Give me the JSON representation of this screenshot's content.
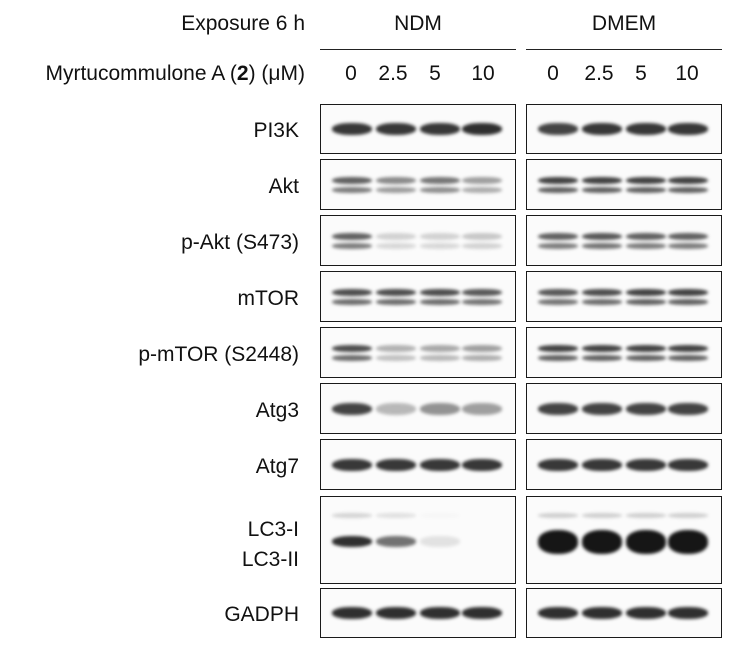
{
  "header": {
    "exposure_label": "Exposure 6 h",
    "condition_1": "NDM",
    "condition_2": "DMEM",
    "compound_prefix": "Myrtucommulone A (",
    "compound_number": "2",
    "compound_suffix": ") (μM)",
    "doses": [
      "0",
      "2.5",
      "5",
      "10"
    ]
  },
  "rows": [
    {
      "label": "PI3K",
      "ndm": [
        0.85,
        0.85,
        0.85,
        0.9
      ],
      "dmem": [
        0.8,
        0.85,
        0.85,
        0.85
      ],
      "double": false
    },
    {
      "label": "Akt",
      "ndm": [
        0.75,
        0.55,
        0.65,
        0.45
      ],
      "dmem": [
        0.9,
        0.9,
        0.9,
        0.9
      ],
      "double": true
    },
    {
      "label": "p-Akt (S473)",
      "ndm": [
        0.75,
        0.2,
        0.2,
        0.25
      ],
      "dmem": [
        0.75,
        0.8,
        0.75,
        0.75
      ],
      "double": true
    },
    {
      "label": "mTOR",
      "ndm": [
        0.85,
        0.85,
        0.85,
        0.8
      ],
      "dmem": [
        0.8,
        0.85,
        0.9,
        0.9
      ],
      "double": true
    },
    {
      "label": "p-mTOR (S2448)",
      "ndm": [
        0.85,
        0.35,
        0.4,
        0.45
      ],
      "dmem": [
        0.9,
        0.9,
        0.9,
        0.9
      ],
      "double": true
    },
    {
      "label": "Atg3",
      "ndm": [
        0.8,
        0.3,
        0.45,
        0.4
      ],
      "dmem": [
        0.8,
        0.8,
        0.8,
        0.8
      ],
      "double": false
    },
    {
      "label": "Atg7",
      "ndm": [
        0.85,
        0.85,
        0.85,
        0.85
      ],
      "dmem": [
        0.85,
        0.85,
        0.85,
        0.85
      ],
      "double": false
    },
    {
      "label": "LC3-I",
      "label2": "LC3-II",
      "ndm": [
        0.9,
        0.6,
        0.1,
        0.0
      ],
      "dmem": [
        1.0,
        1.0,
        1.0,
        1.0
      ],
      "double": false
    },
    {
      "label": "GADPH",
      "ndm": [
        0.9,
        0.9,
        0.9,
        0.9
      ],
      "dmem": [
        0.9,
        0.9,
        0.9,
        0.9
      ],
      "double": false
    }
  ]
}
